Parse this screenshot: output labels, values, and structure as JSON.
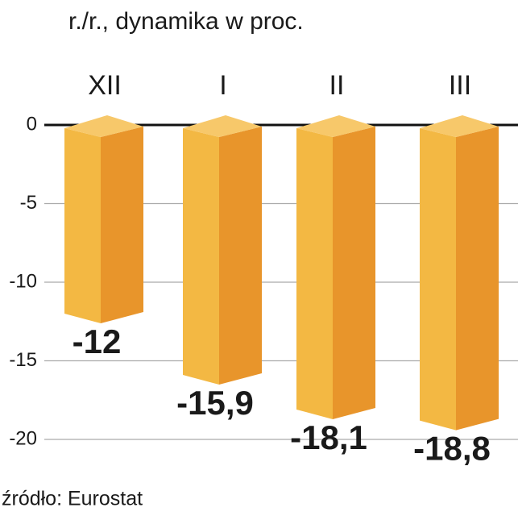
{
  "chart_data": {
    "type": "bar3d",
    "subtitle": "r./r., dynamika w proc.",
    "source": "źródło: Eurostat",
    "categories": [
      "XII",
      "I",
      "II",
      "III"
    ],
    "values": [
      -12,
      -15.9,
      -18.1,
      -18.8
    ],
    "value_labels": [
      "-12",
      "-15,9",
      "-18,1",
      "-18,8"
    ],
    "color": "#f3b843",
    "shade_color": "#e8952b",
    "ylim": [
      -20,
      0
    ],
    "yticks": [
      0,
      -5,
      -10,
      -15,
      -20
    ],
    "grid": true
  }
}
